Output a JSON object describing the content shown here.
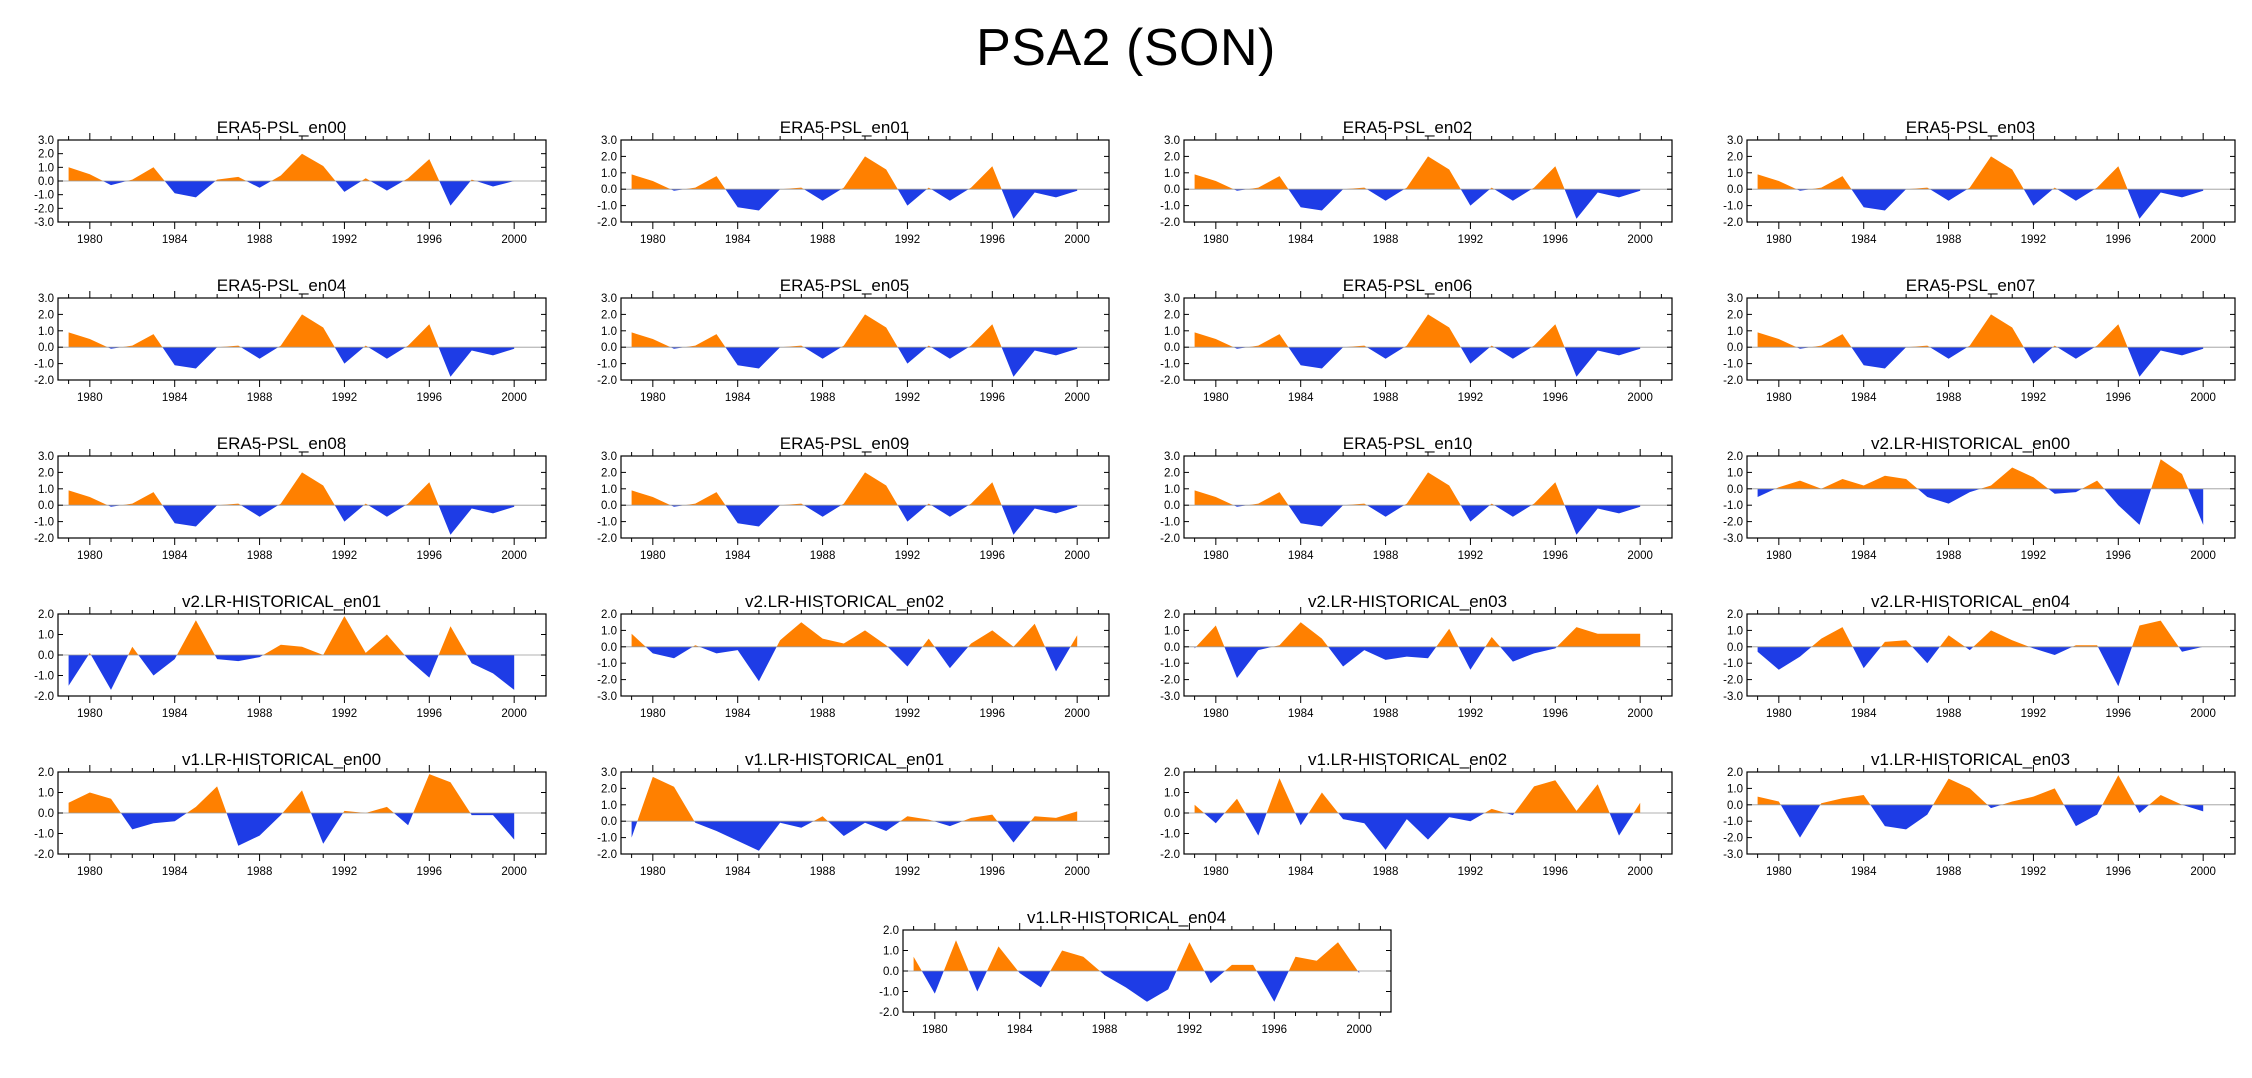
{
  "title": "PSA2 (SON)",
  "colors": {
    "positive": "#ff8000",
    "negative": "#1e3ce6",
    "axis": "#000000"
  },
  "x_ticks": [
    1980,
    1984,
    1988,
    1992,
    1996,
    2000
  ],
  "y_tick_labels": {
    "2.0": "2.0",
    "3.0": "3.0",
    "1.0": "1.0",
    "0.0": "0.0",
    "-1.0": "-1.0",
    "-2.0": "-2.0",
    "-3.0": "-3.0"
  },
  "chart_data": [
    {
      "title": "ERA5-PSL_en00",
      "type": "area",
      "ylim": [
        -3,
        3
      ],
      "yticks": [
        "3.0",
        "2.0",
        "1.0",
        "0.0",
        "-1.0",
        "-2.0",
        "-3.0"
      ],
      "x": [
        1979,
        1980,
        1981,
        1982,
        1983,
        1984,
        1985,
        1986,
        1987,
        1988,
        1989,
        1990,
        1991,
        1992,
        1993,
        1994,
        1995,
        1996,
        1997,
        1998,
        1999,
        2000
      ],
      "values": [
        1.0,
        0.5,
        -0.3,
        0.1,
        1.0,
        -0.9,
        -1.2,
        0.1,
        0.3,
        -0.5,
        0.4,
        2.0,
        1.1,
        -0.8,
        0.2,
        -0.7,
        0.2,
        1.6,
        -1.8,
        0.1,
        -0.4,
        0.0
      ]
    },
    {
      "title": "ERA5-PSL_en01",
      "type": "area",
      "ylim": [
        -2,
        3
      ],
      "yticks": [
        "3.0",
        "2.0",
        "1.0",
        "0.0",
        "-1.0",
        "-2.0"
      ],
      "x": [
        1979,
        1980,
        1981,
        1982,
        1983,
        1984,
        1985,
        1986,
        1987,
        1988,
        1989,
        1990,
        1991,
        1992,
        1993,
        1994,
        1995,
        1996,
        1997,
        1998,
        1999,
        2000
      ],
      "values": [
        0.9,
        0.5,
        -0.1,
        0.1,
        0.8,
        -1.1,
        -1.3,
        0.0,
        0.1,
        -0.7,
        0.1,
        2.0,
        1.2,
        -1.0,
        0.1,
        -0.7,
        0.1,
        1.4,
        -1.8,
        -0.2,
        -0.5,
        -0.1
      ]
    },
    {
      "title": "ERA5-PSL_en02",
      "type": "area",
      "ylim": [
        -2,
        3
      ],
      "yticks": [
        "3.0",
        "2.0",
        "1.0",
        "0.0",
        "-1.0",
        "-2.0"
      ],
      "x": [
        1979,
        1980,
        1981,
        1982,
        1983,
        1984,
        1985,
        1986,
        1987,
        1988,
        1989,
        1990,
        1991,
        1992,
        1993,
        1994,
        1995,
        1996,
        1997,
        1998,
        1999,
        2000
      ],
      "values": [
        0.9,
        0.5,
        -0.1,
        0.1,
        0.8,
        -1.1,
        -1.3,
        0.0,
        0.1,
        -0.7,
        0.1,
        2.0,
        1.2,
        -1.0,
        0.1,
        -0.7,
        0.1,
        1.4,
        -1.8,
        -0.2,
        -0.5,
        -0.1
      ]
    },
    {
      "title": "ERA5-PSL_en03",
      "type": "area",
      "ylim": [
        -2,
        3
      ],
      "yticks": [
        "3.0",
        "2.0",
        "1.0",
        "0.0",
        "-1.0",
        "-2.0"
      ],
      "x": [
        1979,
        1980,
        1981,
        1982,
        1983,
        1984,
        1985,
        1986,
        1987,
        1988,
        1989,
        1990,
        1991,
        1992,
        1993,
        1994,
        1995,
        1996,
        1997,
        1998,
        1999,
        2000
      ],
      "values": [
        0.9,
        0.5,
        -0.1,
        0.1,
        0.8,
        -1.1,
        -1.3,
        0.0,
        0.1,
        -0.7,
        0.1,
        2.0,
        1.2,
        -1.0,
        0.1,
        -0.7,
        0.1,
        1.4,
        -1.8,
        -0.2,
        -0.5,
        -0.1
      ]
    },
    {
      "title": "ERA5-PSL_en04",
      "type": "area",
      "ylim": [
        -2,
        3
      ],
      "yticks": [
        "3.0",
        "2.0",
        "1.0",
        "0.0",
        "-1.0",
        "-2.0"
      ],
      "x": [
        1979,
        1980,
        1981,
        1982,
        1983,
        1984,
        1985,
        1986,
        1987,
        1988,
        1989,
        1990,
        1991,
        1992,
        1993,
        1994,
        1995,
        1996,
        1997,
        1998,
        1999,
        2000
      ],
      "values": [
        0.9,
        0.5,
        -0.1,
        0.1,
        0.8,
        -1.1,
        -1.3,
        0.0,
        0.1,
        -0.7,
        0.1,
        2.0,
        1.2,
        -1.0,
        0.1,
        -0.7,
        0.1,
        1.4,
        -1.8,
        -0.2,
        -0.5,
        -0.1
      ]
    },
    {
      "title": "ERA5-PSL_en05",
      "type": "area",
      "ylim": [
        -2,
        3
      ],
      "yticks": [
        "3.0",
        "2.0",
        "1.0",
        "0.0",
        "-1.0",
        "-2.0"
      ],
      "x": [
        1979,
        1980,
        1981,
        1982,
        1983,
        1984,
        1985,
        1986,
        1987,
        1988,
        1989,
        1990,
        1991,
        1992,
        1993,
        1994,
        1995,
        1996,
        1997,
        1998,
        1999,
        2000
      ],
      "values": [
        0.9,
        0.5,
        -0.1,
        0.1,
        0.8,
        -1.1,
        -1.3,
        0.0,
        0.1,
        -0.7,
        0.1,
        2.0,
        1.2,
        -1.0,
        0.1,
        -0.7,
        0.1,
        1.4,
        -1.8,
        -0.2,
        -0.5,
        -0.1
      ]
    },
    {
      "title": "ERA5-PSL_en06",
      "type": "area",
      "ylim": [
        -2,
        3
      ],
      "yticks": [
        "3.0",
        "2.0",
        "1.0",
        "0.0",
        "-1.0",
        "-2.0"
      ],
      "x": [
        1979,
        1980,
        1981,
        1982,
        1983,
        1984,
        1985,
        1986,
        1987,
        1988,
        1989,
        1990,
        1991,
        1992,
        1993,
        1994,
        1995,
        1996,
        1997,
        1998,
        1999,
        2000
      ],
      "values": [
        0.9,
        0.5,
        -0.1,
        0.1,
        0.8,
        -1.1,
        -1.3,
        0.0,
        0.1,
        -0.7,
        0.1,
        2.0,
        1.2,
        -1.0,
        0.1,
        -0.7,
        0.1,
        1.4,
        -1.8,
        -0.2,
        -0.5,
        -0.1
      ]
    },
    {
      "title": "ERA5-PSL_en07",
      "type": "area",
      "ylim": [
        -2,
        3
      ],
      "yticks": [
        "3.0",
        "2.0",
        "1.0",
        "0.0",
        "-1.0",
        "-2.0"
      ],
      "x": [
        1979,
        1980,
        1981,
        1982,
        1983,
        1984,
        1985,
        1986,
        1987,
        1988,
        1989,
        1990,
        1991,
        1992,
        1993,
        1994,
        1995,
        1996,
        1997,
        1998,
        1999,
        2000
      ],
      "values": [
        0.9,
        0.5,
        -0.1,
        0.1,
        0.8,
        -1.1,
        -1.3,
        0.0,
        0.1,
        -0.7,
        0.1,
        2.0,
        1.2,
        -1.0,
        0.1,
        -0.7,
        0.1,
        1.4,
        -1.8,
        -0.2,
        -0.5,
        -0.1
      ]
    },
    {
      "title": "ERA5-PSL_en08",
      "type": "area",
      "ylim": [
        -2,
        3
      ],
      "yticks": [
        "3.0",
        "2.0",
        "1.0",
        "0.0",
        "-1.0",
        "-2.0"
      ],
      "x": [
        1979,
        1980,
        1981,
        1982,
        1983,
        1984,
        1985,
        1986,
        1987,
        1988,
        1989,
        1990,
        1991,
        1992,
        1993,
        1994,
        1995,
        1996,
        1997,
        1998,
        1999,
        2000
      ],
      "values": [
        0.9,
        0.5,
        -0.1,
        0.1,
        0.8,
        -1.1,
        -1.3,
        0.0,
        0.1,
        -0.7,
        0.1,
        2.0,
        1.2,
        -1.0,
        0.1,
        -0.7,
        0.1,
        1.4,
        -1.8,
        -0.2,
        -0.5,
        -0.1
      ]
    },
    {
      "title": "ERA5-PSL_en09",
      "type": "area",
      "ylim": [
        -2,
        3
      ],
      "yticks": [
        "3.0",
        "2.0",
        "1.0",
        "0.0",
        "-1.0",
        "-2.0"
      ],
      "x": [
        1979,
        1980,
        1981,
        1982,
        1983,
        1984,
        1985,
        1986,
        1987,
        1988,
        1989,
        1990,
        1991,
        1992,
        1993,
        1994,
        1995,
        1996,
        1997,
        1998,
        1999,
        2000
      ],
      "values": [
        0.9,
        0.5,
        -0.1,
        0.1,
        0.8,
        -1.1,
        -1.3,
        0.0,
        0.1,
        -0.7,
        0.1,
        2.0,
        1.2,
        -1.0,
        0.1,
        -0.7,
        0.1,
        1.4,
        -1.8,
        -0.2,
        -0.5,
        -0.1
      ]
    },
    {
      "title": "ERA5-PSL_en10",
      "type": "area",
      "ylim": [
        -2,
        3
      ],
      "yticks": [
        "3.0",
        "2.0",
        "1.0",
        "0.0",
        "-1.0",
        "-2.0"
      ],
      "x": [
        1979,
        1980,
        1981,
        1982,
        1983,
        1984,
        1985,
        1986,
        1987,
        1988,
        1989,
        1990,
        1991,
        1992,
        1993,
        1994,
        1995,
        1996,
        1997,
        1998,
        1999,
        2000
      ],
      "values": [
        0.9,
        0.5,
        -0.1,
        0.1,
        0.8,
        -1.1,
        -1.3,
        0.0,
        0.1,
        -0.7,
        0.1,
        2.0,
        1.2,
        -1.0,
        0.1,
        -0.7,
        0.1,
        1.4,
        -1.8,
        -0.2,
        -0.5,
        -0.1
      ]
    },
    {
      "title": "v2.LR-HISTORICAL_en00",
      "type": "area",
      "ylim": [
        -3,
        2
      ],
      "yticks": [
        "2.0",
        "1.0",
        "0.0",
        "-1.0",
        "-2.0",
        "-3.0"
      ],
      "x": [
        1979,
        1980,
        1981,
        1982,
        1983,
        1984,
        1985,
        1986,
        1987,
        1988,
        1989,
        1990,
        1991,
        1992,
        1993,
        1994,
        1995,
        1996,
        1997,
        1998,
        1999,
        2000
      ],
      "values": [
        -0.5,
        0.1,
        0.5,
        0.0,
        0.6,
        0.2,
        0.8,
        0.6,
        -0.5,
        -0.9,
        -0.2,
        0.2,
        1.3,
        0.7,
        -0.3,
        -0.2,
        0.5,
        -1.0,
        -2.2,
        1.8,
        0.9,
        -2.2
      ]
    },
    {
      "title": "v2.LR-HISTORICAL_en01",
      "type": "area",
      "ylim": [
        -2,
        2
      ],
      "yticks": [
        "2.0",
        "1.0",
        "0.0",
        "-1.0",
        "-2.0"
      ],
      "x": [
        1979,
        1980,
        1981,
        1982,
        1983,
        1984,
        1985,
        1986,
        1987,
        1988,
        1989,
        1990,
        1991,
        1992,
        1993,
        1994,
        1995,
        1996,
        1997,
        1998,
        1999,
        2000
      ],
      "values": [
        -1.5,
        0.1,
        -1.7,
        0.4,
        -1.0,
        -0.2,
        1.7,
        -0.2,
        -0.3,
        -0.1,
        0.5,
        0.4,
        0.0,
        1.9,
        0.1,
        1.0,
        -0.2,
        -1.1,
        1.4,
        -0.4,
        -0.9,
        -1.7
      ]
    },
    {
      "title": "v2.LR-HISTORICAL_en02",
      "type": "area",
      "ylim": [
        -3,
        2
      ],
      "yticks": [
        "2.0",
        "1.0",
        "0.0",
        "-1.0",
        "-2.0",
        "-3.0"
      ],
      "x": [
        1979,
        1980,
        1981,
        1982,
        1983,
        1984,
        1985,
        1986,
        1987,
        1988,
        1989,
        1990,
        1991,
        1992,
        1993,
        1994,
        1995,
        1996,
        1997,
        1998,
        1999,
        2000
      ],
      "values": [
        0.8,
        -0.4,
        -0.7,
        0.1,
        -0.4,
        -0.2,
        -2.1,
        0.4,
        1.5,
        0.5,
        0.2,
        1.0,
        0.1,
        -1.2,
        0.5,
        -1.3,
        0.2,
        1.0,
        0.0,
        1.4,
        -1.5,
        0.7
      ]
    },
    {
      "title": "v2.LR-HISTORICAL_en03",
      "type": "area",
      "ylim": [
        -3,
        2
      ],
      "yticks": [
        "2.0",
        "1.0",
        "0.0",
        "-1.0",
        "-2.0",
        "-3.0"
      ],
      "x": [
        1979,
        1980,
        1981,
        1982,
        1983,
        1984,
        1985,
        1986,
        1987,
        1988,
        1989,
        1990,
        1991,
        1992,
        1993,
        1994,
        1995,
        1996,
        1997,
        1998,
        1999,
        2000
      ],
      "values": [
        -0.1,
        1.3,
        -1.9,
        -0.2,
        0.1,
        1.5,
        0.5,
        -1.2,
        -0.2,
        -0.8,
        -0.6,
        -0.7,
        1.1,
        -1.4,
        0.6,
        -0.9,
        -0.4,
        -0.1,
        1.2,
        0.8,
        0.8,
        0.8
      ]
    },
    {
      "title": "v2.LR-HISTORICAL_en04",
      "type": "area",
      "ylim": [
        -3,
        2
      ],
      "yticks": [
        "2.0",
        "1.0",
        "0.0",
        "-1.0",
        "-2.0",
        "-3.0"
      ],
      "x": [
        1979,
        1980,
        1981,
        1982,
        1983,
        1984,
        1985,
        1986,
        1987,
        1988,
        1989,
        1990,
        1991,
        1992,
        1993,
        1994,
        1995,
        1996,
        1997,
        1998,
        1999,
        2000
      ],
      "values": [
        -0.3,
        -1.4,
        -0.6,
        0.5,
        1.2,
        -1.3,
        0.3,
        0.4,
        -1.0,
        0.7,
        -0.2,
        1.0,
        0.4,
        -0.1,
        -0.5,
        0.1,
        0.1,
        -2.4,
        1.3,
        1.6,
        -0.3,
        0.0
      ]
    },
    {
      "title": "v1.LR-HISTORICAL_en00",
      "type": "area",
      "ylim": [
        -2,
        2
      ],
      "yticks": [
        "2.0",
        "1.0",
        "0.0",
        "-1.0",
        "-2.0"
      ],
      "x": [
        1979,
        1980,
        1981,
        1982,
        1983,
        1984,
        1985,
        1986,
        1987,
        1988,
        1989,
        1990,
        1991,
        1992,
        1993,
        1994,
        1995,
        1996,
        1997,
        1998,
        1999,
        2000
      ],
      "values": [
        0.5,
        1.0,
        0.7,
        -0.8,
        -0.5,
        -0.4,
        0.3,
        1.3,
        -1.6,
        -1.1,
        -0.1,
        1.1,
        -1.5,
        0.1,
        0.0,
        0.3,
        -0.6,
        1.9,
        1.5,
        -0.1,
        -0.1,
        -1.3
      ]
    },
    {
      "title": "v1.LR-HISTORICAL_en01",
      "type": "area",
      "ylim": [
        -2,
        3
      ],
      "yticks": [
        "3.0",
        "2.0",
        "1.0",
        "0.0",
        "-1.0",
        "-2.0"
      ],
      "x": [
        1979,
        1980,
        1981,
        1982,
        1983,
        1984,
        1985,
        1986,
        1987,
        1988,
        1989,
        1990,
        1991,
        1992,
        1993,
        1994,
        1995,
        1996,
        1997,
        1998,
        1999,
        2000
      ],
      "values": [
        -1.0,
        2.7,
        2.1,
        -0.1,
        -0.6,
        -1.2,
        -1.8,
        -0.1,
        -0.4,
        0.3,
        -0.9,
        -0.1,
        -0.6,
        0.3,
        0.1,
        -0.3,
        0.2,
        0.4,
        -1.3,
        0.3,
        0.2,
        0.6
      ]
    },
    {
      "title": "v1.LR-HISTORICAL_en02",
      "type": "area",
      "ylim": [
        -2,
        2
      ],
      "yticks": [
        "2.0",
        "1.0",
        "0.0",
        "-1.0",
        "-2.0"
      ],
      "x": [
        1979,
        1980,
        1981,
        1982,
        1983,
        1984,
        1985,
        1986,
        1987,
        1988,
        1989,
        1990,
        1991,
        1992,
        1993,
        1994,
        1995,
        1996,
        1997,
        1998,
        1999,
        2000
      ],
      "values": [
        0.4,
        -0.5,
        0.7,
        -1.1,
        1.7,
        -0.6,
        1.0,
        -0.3,
        -0.5,
        -1.8,
        -0.3,
        -1.3,
        -0.2,
        -0.4,
        0.2,
        -0.1,
        1.3,
        1.6,
        0.1,
        1.4,
        -1.1,
        0.5
      ]
    },
    {
      "title": "v1.LR-HISTORICAL_en03",
      "type": "area",
      "ylim": [
        -3,
        2
      ],
      "yticks": [
        "2.0",
        "1.0",
        "0.0",
        "-1.0",
        "-2.0",
        "-3.0"
      ],
      "x": [
        1979,
        1980,
        1981,
        1982,
        1983,
        1984,
        1985,
        1986,
        1987,
        1988,
        1989,
        1990,
        1991,
        1992,
        1993,
        1994,
        1995,
        1996,
        1997,
        1998,
        1999,
        2000
      ],
      "values": [
        0.5,
        0.2,
        -2.0,
        0.1,
        0.4,
        0.6,
        -1.3,
        -1.5,
        -0.6,
        1.6,
        1.0,
        -0.2,
        0.2,
        0.5,
        1.0,
        -1.3,
        -0.6,
        1.8,
        -0.5,
        0.6,
        0.0,
        -0.4
      ]
    },
    {
      "title": "v1.LR-HISTORICAL_en04",
      "type": "area",
      "ylim": [
        -2,
        2
      ],
      "yticks": [
        "2.0",
        "1.0",
        "0.0",
        "-1.0",
        "-2.0"
      ],
      "x": [
        1979,
        1980,
        1981,
        1982,
        1983,
        1984,
        1985,
        1986,
        1987,
        1988,
        1989,
        1990,
        1991,
        1992,
        1993,
        1994,
        1995,
        1996,
        1997,
        1998,
        1999,
        2000
      ],
      "values": [
        0.7,
        -1.1,
        1.5,
        -1.0,
        1.2,
        -0.1,
        -0.8,
        1.0,
        0.7,
        -0.2,
        -0.8,
        -1.5,
        -0.9,
        1.4,
        -0.6,
        0.3,
        0.3,
        -1.5,
        0.7,
        0.5,
        1.4,
        -0.1
      ]
    }
  ]
}
